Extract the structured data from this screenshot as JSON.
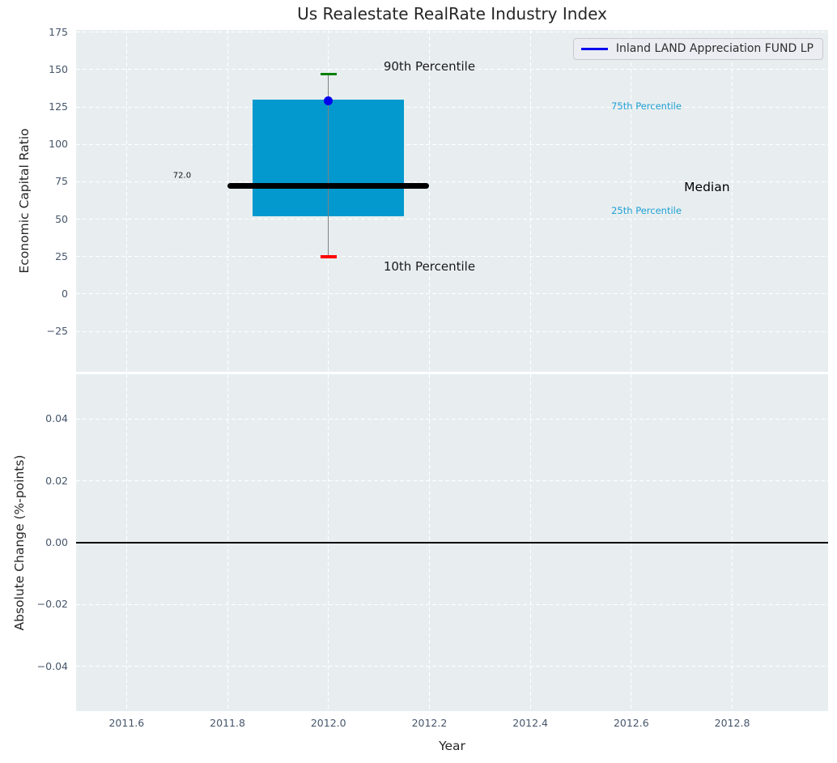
{
  "figure": {
    "title": "Us Realestate RealRate Industry Index"
  },
  "legend": {
    "label": "Inland LAND Appreciation FUND LP"
  },
  "chart_data": {
    "type": "boxplot",
    "title": "Us Realestate RealRate Industry Index",
    "xlabel": "Year",
    "x_domain": [
      2011.5,
      2012.99
    ],
    "xticks": [
      {
        "v": 2011.6,
        "label": "2011.6"
      },
      {
        "v": 2011.8,
        "label": "2011.8"
      },
      {
        "v": 2012.0,
        "label": "2012.0"
      },
      {
        "v": 2012.2,
        "label": "2012.2"
      },
      {
        "v": 2012.4,
        "label": "2012.4"
      },
      {
        "v": 2012.6,
        "label": "2012.6"
      },
      {
        "v": 2012.8,
        "label": "2012.8"
      }
    ],
    "panels": [
      {
        "id": "top",
        "ylabel": "Economic Capital Ratio",
        "y_domain": [
          -52,
          176.5
        ],
        "yticks": [
          {
            "v": 175,
            "label": "175"
          },
          {
            "v": 150,
            "label": "150"
          },
          {
            "v": 125,
            "label": "125"
          },
          {
            "v": 100,
            "label": "100"
          },
          {
            "v": 75,
            "label": "75"
          },
          {
            "v": 50,
            "label": "50"
          },
          {
            "v": 25,
            "label": "25"
          },
          {
            "v": 0,
            "label": "0"
          },
          {
            "v": -25,
            "label": "−25"
          }
        ],
        "box": {
          "name": "Inland LAND Appreciation FUND LP",
          "year": 2012.0,
          "p10": 25,
          "p25": 52,
          "median": 72.0,
          "p75": 130,
          "p90": 147,
          "fund_value": 129,
          "box_half_width": 0.15,
          "median_half_width": 0.2
        },
        "annotations": [
          {
            "text": "90th Percentile",
            "x": 2012.2,
            "y": 152,
            "size": 15,
            "color": "#1a1a1a"
          },
          {
            "text": "10th Percentile",
            "x": 2012.2,
            "y": 18.4,
            "size": 15,
            "color": "#1a1a1a"
          },
          {
            "text": "75th Percentile",
            "x": 2012.63,
            "y": 125.6,
            "size": 11.5,
            "color": "#1f9fd4"
          },
          {
            "text": "25th Percentile",
            "x": 2012.63,
            "y": 55.7,
            "size": 11.5,
            "color": "#1f9fd4"
          },
          {
            "text": "Median",
            "x": 2012.75,
            "y": 71.2,
            "size": 15.5,
            "color": "#000000"
          },
          {
            "text": "72.0",
            "x": 2011.71,
            "y": 78.8,
            "size": 10,
            "color": "#111111"
          }
        ]
      },
      {
        "id": "bottom",
        "ylabel": "Absolute Change (%-points)",
        "y_domain": [
          -0.0545,
          0.0545
        ],
        "yticks": [
          {
            "v": 0.04,
            "label": "0.04"
          },
          {
            "v": 0.02,
            "label": "0.02"
          },
          {
            "v": 0.0,
            "label": "0.00"
          },
          {
            "v": -0.02,
            "label": "−0.02"
          },
          {
            "v": -0.04,
            "label": "−0.04"
          }
        ],
        "zero_line": 0.0
      }
    ],
    "colors": {
      "panel_bg": "#e8eef0",
      "grid": "#ffffff",
      "box_fill": "#0499ce",
      "median_line": "#000000",
      "whisker": "#7f7f7f",
      "cap_90th": "#008000",
      "cap_10th": "#ff0000",
      "fund_dot": "#0000ee",
      "legend_line": "#0000ee",
      "zero_line": "#000000",
      "tick_text": "#46566b"
    }
  }
}
